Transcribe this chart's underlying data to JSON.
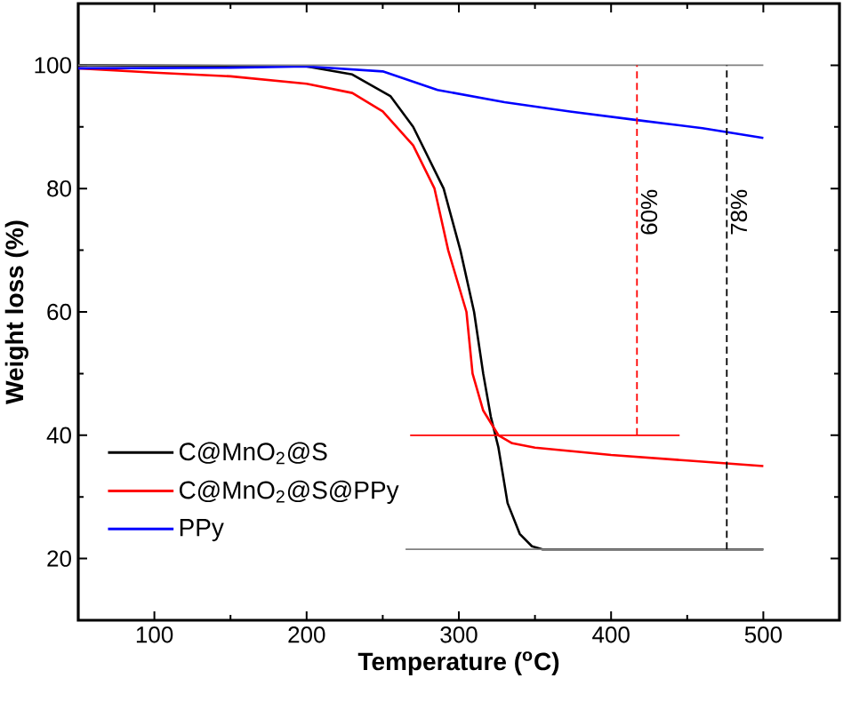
{
  "chart_data": {
    "type": "line",
    "xlabel": "Temperature ($^{o}$C)",
    "ylabel": "Weight loss (%)",
    "xlim": [
      50,
      550
    ],
    "ylim": [
      10,
      110
    ],
    "xticks": [
      100,
      200,
      300,
      400,
      500
    ],
    "yticks": [
      20,
      40,
      60,
      80,
      100
    ],
    "legend": "bottom left",
    "grid": false,
    "marker": "none",
    "series": [
      {
        "name": "C@MnO$_{2}$@S",
        "color": "#000000",
        "line_style": "solid",
        "x": [
          50,
          200,
          230,
          255,
          270,
          290,
          301,
          310,
          316,
          321,
          326,
          332,
          340,
          348,
          355,
          400,
          500
        ],
        "values": [
          100,
          99.8,
          98.5,
          95,
          90,
          80,
          70,
          60,
          50,
          43,
          38,
          29,
          24,
          22,
          21.5,
          21.5,
          21.5
        ]
      },
      {
        "name": "C@MnO$_{2}$@S@PPy",
        "color": "#ff0000",
        "line_style": "solid",
        "x": [
          50,
          100,
          150,
          200,
          230,
          250,
          270,
          284,
          293,
          305,
          309,
          316,
          326,
          335,
          350,
          400,
          450,
          500
        ],
        "values": [
          99.5,
          98.8,
          98.2,
          97,
          95.5,
          92.5,
          87,
          80,
          70,
          60,
          50,
          44,
          40,
          38.7,
          38,
          36.8,
          35.9,
          35
        ]
      },
      {
        "name": "PPy",
        "color": "#0000ff",
        "line_style": "solid",
        "x": [
          50,
          150,
          200,
          250,
          286,
          330,
          373,
          417,
          460,
          500
        ],
        "values": [
          99.5,
          99.6,
          99.8,
          99,
          96,
          94,
          92.5,
          91.1,
          89.8,
          88.2
        ]
      },
      {
        "color": "#808080",
        "line_style": "solid",
        "x": [
          50,
          500
        ],
        "values": [
          100,
          100
        ]
      },
      {
        "color": "#808080",
        "line_style": "solid",
        "x": [
          265,
          500
        ],
        "values": [
          21.5,
          21.5
        ]
      },
      {
        "color": "#ff0000",
        "line_style": "solid",
        "x": [
          268,
          445
        ],
        "values": [
          40,
          40
        ]
      },
      {
        "color": "#ff0000",
        "line_style": "dashed",
        "x": [
          417,
          417
        ],
        "values": [
          40,
          100
        ]
      },
      {
        "color": "#000000",
        "line_style": "dashed",
        "x": [
          476,
          476
        ],
        "values": [
          21.5,
          100
        ]
      }
    ],
    "annotations": [
      {
        "text": "60%",
        "x": 417,
        "y": 75
      },
      {
        "text": "78%",
        "x": 476,
        "y": 75
      }
    ]
  }
}
